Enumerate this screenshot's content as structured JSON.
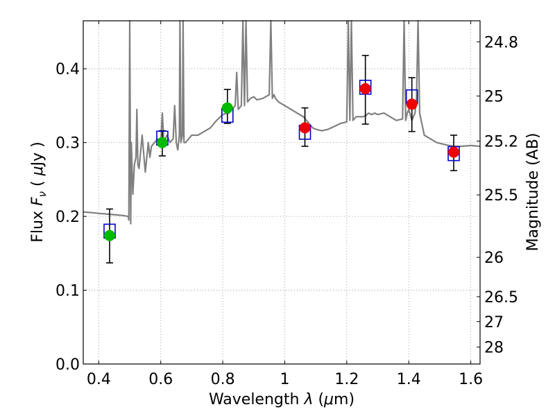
{
  "chart_data": {
    "type": "scatter",
    "xlabel_parts": [
      "Wavelength  ",
      "λ",
      " (",
      "μ",
      "m)"
    ],
    "ylabel_parts": [
      "Flux  ",
      "F",
      "ν",
      "  ( ",
      "μ",
      "Jy )"
    ],
    "y2label": "Magnitude (AB)",
    "xlim": [
      0.35,
      1.63
    ],
    "ylim": [
      0.0,
      0.465
    ],
    "grid": true,
    "x_ticks": [
      0.4,
      0.6,
      0.8,
      1.0,
      1.2,
      1.4,
      1.6
    ],
    "x_tick_labels": [
      "0.4",
      "0.6",
      "0.8",
      "1",
      "1.2",
      "1.4",
      "1.6"
    ],
    "y_ticks": [
      0.0,
      0.1,
      0.2,
      0.3,
      0.4
    ],
    "y_tick_labels": [
      "0.0",
      "0.1",
      "0.2",
      "0.3",
      "0.4"
    ],
    "mag_ticks": [
      {
        "label": "24.8",
        "flux": 0.4365
      },
      {
        "label": "25",
        "flux": 0.3631
      },
      {
        "label": "25.2",
        "flux": 0.302
      },
      {
        "label": "25.5",
        "flux": 0.2291
      },
      {
        "label": "26",
        "flux": 0.1445
      },
      {
        "label": "26.5",
        "flux": 0.0912
      },
      {
        "label": "27",
        "flux": 0.0575
      },
      {
        "label": "28",
        "flux": 0.0229
      }
    ],
    "colors": {
      "spectrum": "#808080",
      "model_box": "#0000cc",
      "green_point": "#00bb00",
      "red_point": "#ee0000",
      "errorbar": "#000000",
      "grid": "#888888"
    },
    "series": [
      {
        "x": [
          0.435,
          0.605,
          0.815
        ],
        "y": [
          0.174,
          0.3,
          0.347
        ],
        "yerr_low": [
          0.137,
          0.282,
          0.326
        ],
        "yerr_high": [
          0.21,
          0.316,
          0.372
        ],
        "color": "green"
      },
      {
        "x": [
          1.065,
          1.26,
          1.41,
          1.545
        ],
        "y": [
          0.32,
          0.373,
          0.352,
          0.287
        ],
        "yerr_low": [
          0.295,
          0.325,
          0.315,
          0.262
        ],
        "yerr_high": [
          0.347,
          0.418,
          0.388,
          0.31
        ],
        "color": "red"
      }
    ],
    "model_boxes": {
      "x": [
        0.435,
        0.605,
        0.815,
        1.065,
        1.26,
        1.41,
        1.545
      ],
      "y": [
        0.18,
        0.306,
        0.337,
        0.314,
        0.375,
        0.362,
        0.285
      ]
    },
    "spectrum": {
      "x": [
        0.35,
        0.38,
        0.4,
        0.43,
        0.46,
        0.48,
        0.495,
        0.497,
        0.5,
        0.503,
        0.505,
        0.51,
        0.515,
        0.52,
        0.523,
        0.526,
        0.53,
        0.54,
        0.55,
        0.56,
        0.565,
        0.57,
        0.58,
        0.59,
        0.6,
        0.605,
        0.61,
        0.62,
        0.63,
        0.64,
        0.645,
        0.65,
        0.655,
        0.66,
        0.662,
        0.665,
        0.67,
        0.672,
        0.675,
        0.68,
        0.69,
        0.7,
        0.72,
        0.74,
        0.76,
        0.78,
        0.8,
        0.815,
        0.82,
        0.83,
        0.84,
        0.845,
        0.85,
        0.86,
        0.865,
        0.87,
        0.875,
        0.88,
        0.89,
        0.9,
        0.91,
        0.93,
        0.95,
        0.955,
        0.96,
        0.965,
        0.97,
        0.98,
        1.0,
        1.02,
        1.04,
        1.06,
        1.07,
        1.08,
        1.09,
        1.1,
        1.12,
        1.14,
        1.16,
        1.18,
        1.2,
        1.205,
        1.21,
        1.215,
        1.22,
        1.23,
        1.25,
        1.26,
        1.27,
        1.28,
        1.29,
        1.3,
        1.32,
        1.34,
        1.36,
        1.38,
        1.385,
        1.39,
        1.395,
        1.4,
        1.41,
        1.42,
        1.425,
        1.43,
        1.435,
        1.44,
        1.45,
        1.47,
        1.49,
        1.51,
        1.53,
        1.55,
        1.57,
        1.6,
        1.63
      ],
      "y": [
        0.206,
        0.205,
        0.204,
        0.203,
        0.202,
        0.201,
        0.2,
        0.195,
        0.465,
        0.19,
        0.3,
        0.23,
        0.27,
        0.28,
        0.345,
        0.27,
        0.265,
        0.31,
        0.26,
        0.3,
        0.28,
        0.295,
        0.3,
        0.305,
        0.3,
        0.34,
        0.3,
        0.31,
        0.3,
        0.305,
        0.35,
        0.3,
        0.29,
        0.31,
        0.465,
        0.3,
        0.31,
        0.465,
        0.3,
        0.3,
        0.305,
        0.31,
        0.31,
        0.315,
        0.32,
        0.33,
        0.338,
        0.34,
        0.34,
        0.345,
        0.35,
        0.395,
        0.345,
        0.35,
        0.465,
        0.35,
        0.465,
        0.355,
        0.36,
        0.362,
        0.358,
        0.36,
        0.365,
        0.465,
        0.36,
        0.365,
        0.36,
        0.355,
        0.35,
        0.345,
        0.34,
        0.335,
        0.33,
        0.325,
        0.32,
        0.318,
        0.316,
        0.318,
        0.322,
        0.326,
        0.328,
        0.465,
        0.33,
        0.465,
        0.33,
        0.335,
        0.335,
        0.336,
        0.34,
        0.338,
        0.34,
        0.338,
        0.34,
        0.335,
        0.33,
        0.332,
        0.465,
        0.33,
        0.34,
        0.345,
        0.33,
        0.34,
        0.36,
        0.465,
        0.34,
        0.33,
        0.31,
        0.305,
        0.3,
        0.298,
        0.296,
        0.295,
        0.295,
        0.296,
        0.295
      ]
    }
  }
}
